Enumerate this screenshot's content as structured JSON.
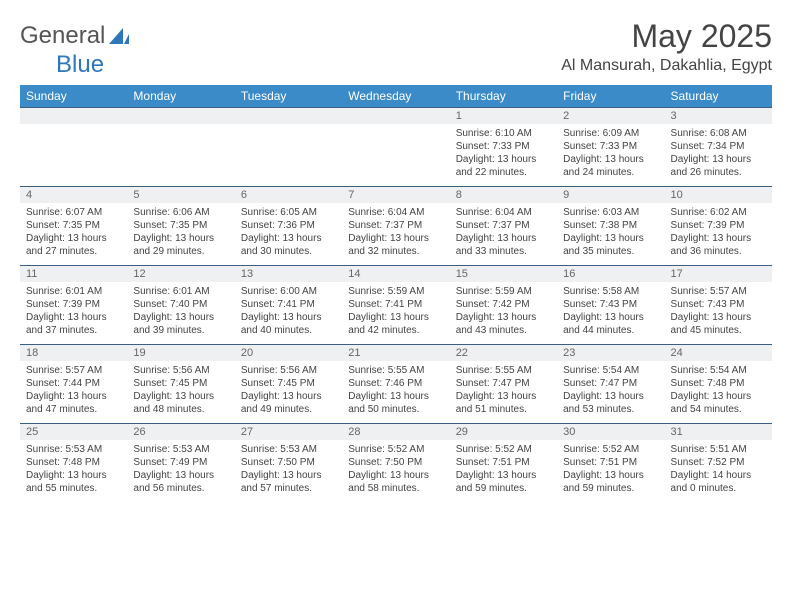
{
  "brand": {
    "part1": "General",
    "part2": "Blue"
  },
  "title": "May 2025",
  "location": "Al Mansurah, Dakahlia, Egypt",
  "colors": {
    "header_bg": "#3b8bc9",
    "header_text": "#ffffff",
    "daynum_bg": "#eef0f2",
    "daynum_border": "#3b5f80",
    "text": "#444444",
    "brand_accent": "#2f77bb"
  },
  "day_names": [
    "Sunday",
    "Monday",
    "Tuesday",
    "Wednesday",
    "Thursday",
    "Friday",
    "Saturday"
  ],
  "weeks": [
    [
      {
        "n": "",
        "sr": "",
        "ss": "",
        "dl": ""
      },
      {
        "n": "",
        "sr": "",
        "ss": "",
        "dl": ""
      },
      {
        "n": "",
        "sr": "",
        "ss": "",
        "dl": ""
      },
      {
        "n": "",
        "sr": "",
        "ss": "",
        "dl": ""
      },
      {
        "n": "1",
        "sr": "Sunrise: 6:10 AM",
        "ss": "Sunset: 7:33 PM",
        "dl": "Daylight: 13 hours and 22 minutes."
      },
      {
        "n": "2",
        "sr": "Sunrise: 6:09 AM",
        "ss": "Sunset: 7:33 PM",
        "dl": "Daylight: 13 hours and 24 minutes."
      },
      {
        "n": "3",
        "sr": "Sunrise: 6:08 AM",
        "ss": "Sunset: 7:34 PM",
        "dl": "Daylight: 13 hours and 26 minutes."
      }
    ],
    [
      {
        "n": "4",
        "sr": "Sunrise: 6:07 AM",
        "ss": "Sunset: 7:35 PM",
        "dl": "Daylight: 13 hours and 27 minutes."
      },
      {
        "n": "5",
        "sr": "Sunrise: 6:06 AM",
        "ss": "Sunset: 7:35 PM",
        "dl": "Daylight: 13 hours and 29 minutes."
      },
      {
        "n": "6",
        "sr": "Sunrise: 6:05 AM",
        "ss": "Sunset: 7:36 PM",
        "dl": "Daylight: 13 hours and 30 minutes."
      },
      {
        "n": "7",
        "sr": "Sunrise: 6:04 AM",
        "ss": "Sunset: 7:37 PM",
        "dl": "Daylight: 13 hours and 32 minutes."
      },
      {
        "n": "8",
        "sr": "Sunrise: 6:04 AM",
        "ss": "Sunset: 7:37 PM",
        "dl": "Daylight: 13 hours and 33 minutes."
      },
      {
        "n": "9",
        "sr": "Sunrise: 6:03 AM",
        "ss": "Sunset: 7:38 PM",
        "dl": "Daylight: 13 hours and 35 minutes."
      },
      {
        "n": "10",
        "sr": "Sunrise: 6:02 AM",
        "ss": "Sunset: 7:39 PM",
        "dl": "Daylight: 13 hours and 36 minutes."
      }
    ],
    [
      {
        "n": "11",
        "sr": "Sunrise: 6:01 AM",
        "ss": "Sunset: 7:39 PM",
        "dl": "Daylight: 13 hours and 37 minutes."
      },
      {
        "n": "12",
        "sr": "Sunrise: 6:01 AM",
        "ss": "Sunset: 7:40 PM",
        "dl": "Daylight: 13 hours and 39 minutes."
      },
      {
        "n": "13",
        "sr": "Sunrise: 6:00 AM",
        "ss": "Sunset: 7:41 PM",
        "dl": "Daylight: 13 hours and 40 minutes."
      },
      {
        "n": "14",
        "sr": "Sunrise: 5:59 AM",
        "ss": "Sunset: 7:41 PM",
        "dl": "Daylight: 13 hours and 42 minutes."
      },
      {
        "n": "15",
        "sr": "Sunrise: 5:59 AM",
        "ss": "Sunset: 7:42 PM",
        "dl": "Daylight: 13 hours and 43 minutes."
      },
      {
        "n": "16",
        "sr": "Sunrise: 5:58 AM",
        "ss": "Sunset: 7:43 PM",
        "dl": "Daylight: 13 hours and 44 minutes."
      },
      {
        "n": "17",
        "sr": "Sunrise: 5:57 AM",
        "ss": "Sunset: 7:43 PM",
        "dl": "Daylight: 13 hours and 45 minutes."
      }
    ],
    [
      {
        "n": "18",
        "sr": "Sunrise: 5:57 AM",
        "ss": "Sunset: 7:44 PM",
        "dl": "Daylight: 13 hours and 47 minutes."
      },
      {
        "n": "19",
        "sr": "Sunrise: 5:56 AM",
        "ss": "Sunset: 7:45 PM",
        "dl": "Daylight: 13 hours and 48 minutes."
      },
      {
        "n": "20",
        "sr": "Sunrise: 5:56 AM",
        "ss": "Sunset: 7:45 PM",
        "dl": "Daylight: 13 hours and 49 minutes."
      },
      {
        "n": "21",
        "sr": "Sunrise: 5:55 AM",
        "ss": "Sunset: 7:46 PM",
        "dl": "Daylight: 13 hours and 50 minutes."
      },
      {
        "n": "22",
        "sr": "Sunrise: 5:55 AM",
        "ss": "Sunset: 7:47 PM",
        "dl": "Daylight: 13 hours and 51 minutes."
      },
      {
        "n": "23",
        "sr": "Sunrise: 5:54 AM",
        "ss": "Sunset: 7:47 PM",
        "dl": "Daylight: 13 hours and 53 minutes."
      },
      {
        "n": "24",
        "sr": "Sunrise: 5:54 AM",
        "ss": "Sunset: 7:48 PM",
        "dl": "Daylight: 13 hours and 54 minutes."
      }
    ],
    [
      {
        "n": "25",
        "sr": "Sunrise: 5:53 AM",
        "ss": "Sunset: 7:48 PM",
        "dl": "Daylight: 13 hours and 55 minutes."
      },
      {
        "n": "26",
        "sr": "Sunrise: 5:53 AM",
        "ss": "Sunset: 7:49 PM",
        "dl": "Daylight: 13 hours and 56 minutes."
      },
      {
        "n": "27",
        "sr": "Sunrise: 5:53 AM",
        "ss": "Sunset: 7:50 PM",
        "dl": "Daylight: 13 hours and 57 minutes."
      },
      {
        "n": "28",
        "sr": "Sunrise: 5:52 AM",
        "ss": "Sunset: 7:50 PM",
        "dl": "Daylight: 13 hours and 58 minutes."
      },
      {
        "n": "29",
        "sr": "Sunrise: 5:52 AM",
        "ss": "Sunset: 7:51 PM",
        "dl": "Daylight: 13 hours and 59 minutes."
      },
      {
        "n": "30",
        "sr": "Sunrise: 5:52 AM",
        "ss": "Sunset: 7:51 PM",
        "dl": "Daylight: 13 hours and 59 minutes."
      },
      {
        "n": "31",
        "sr": "Sunrise: 5:51 AM",
        "ss": "Sunset: 7:52 PM",
        "dl": "Daylight: 14 hours and 0 minutes."
      }
    ]
  ]
}
